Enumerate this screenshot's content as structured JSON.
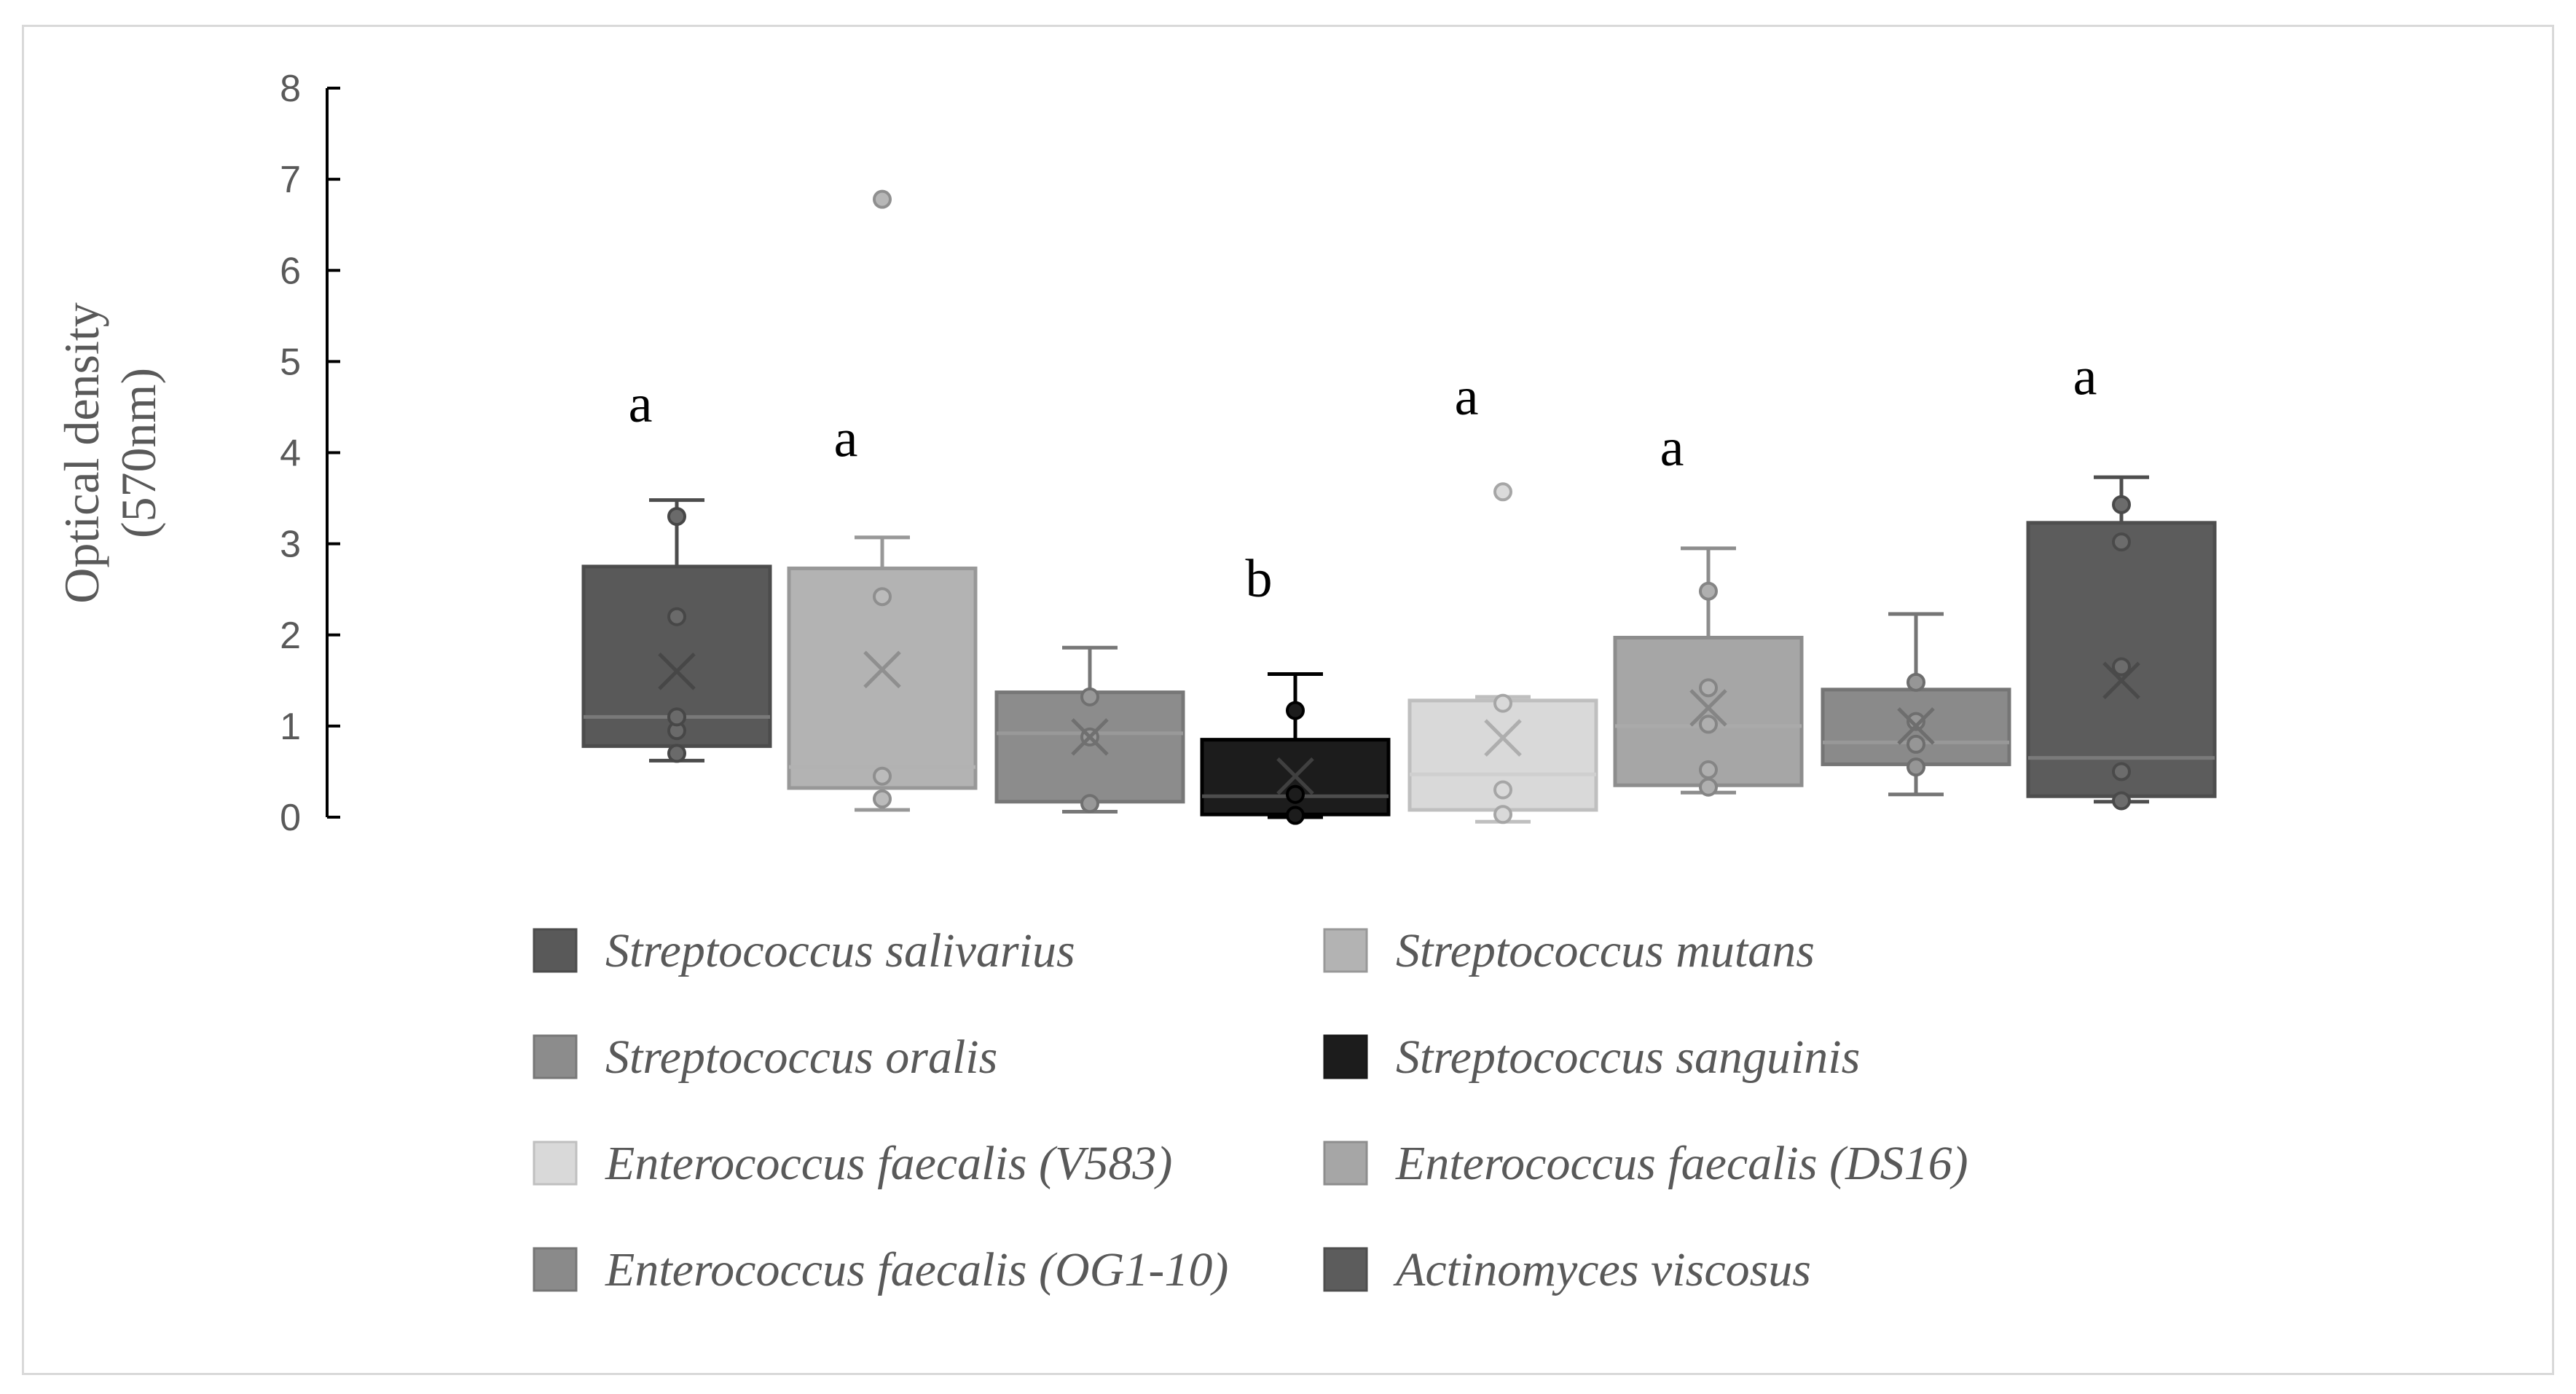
{
  "chart_data": {
    "type": "box",
    "title": "",
    "xlabel": "",
    "ylabel": [
      "Optical density",
      "(570nm)"
    ],
    "ylim": [
      0,
      8
    ],
    "yticks": [
      "0",
      "1",
      "2",
      "3",
      "4",
      "5",
      "6",
      "7",
      "8"
    ],
    "series": [
      {
        "name": "Streptococcus salivarius",
        "color": "#595959",
        "whisker_low": 0.62,
        "q1": 0.78,
        "median": 1.1,
        "q3": 2.75,
        "whisker_high": 3.48,
        "mean": 1.6,
        "points": [
          0.7,
          0.95,
          1.1,
          2.2,
          3.3
        ],
        "outliers": [],
        "letter": "a",
        "letter_y": 4.5
      },
      {
        "name": "Streptococcus mutans",
        "color": "#b3b3b3",
        "whisker_low": 0.08,
        "q1": 0.32,
        "median": 0.55,
        "q3": 2.73,
        "whisker_high": 3.07,
        "mean": 1.62,
        "points": [
          0.2,
          0.45,
          2.42
        ],
        "outliers": [
          6.78
        ],
        "letter": "a",
        "letter_y": 4.12
      },
      {
        "name": "Streptococcus oralis",
        "color": "#8c8c8c",
        "whisker_low": 0.06,
        "q1": 0.17,
        "median": 0.92,
        "q3": 1.37,
        "whisker_high": 1.86,
        "mean": 0.88,
        "points": [
          0.15,
          0.88,
          1.32
        ],
        "outliers": [],
        "letter": "",
        "letter_y": 0
      },
      {
        "name": "Streptococcus sanguinis",
        "color": "#1c1c1c",
        "whisker_low": 0.0,
        "q1": 0.03,
        "median": 0.23,
        "q3": 0.85,
        "whisker_high": 1.57,
        "mean": 0.45,
        "points": [
          0.02,
          0.25,
          1.17
        ],
        "outliers": [],
        "letter": "b",
        "letter_y": 2.58
      },
      {
        "name": "Enterococcus faecalis (V583)",
        "color": "#d9d9d9",
        "whisker_low": -0.05,
        "q1": 0.08,
        "median": 0.47,
        "q3": 1.28,
        "whisker_high": 1.32,
        "mean": 0.87,
        "points": [
          0.03,
          0.3,
          1.25
        ],
        "outliers": [
          3.57
        ],
        "letter": "a",
        "letter_y": 4.58
      },
      {
        "name": "Enterococcus faecalis (DS16)",
        "color": "#a6a6a6",
        "whisker_low": 0.27,
        "q1": 0.35,
        "median": 1.0,
        "q3": 1.97,
        "whisker_high": 2.95,
        "mean": 1.2,
        "points": [
          0.33,
          0.52,
          1.02,
          1.42,
          2.48
        ],
        "outliers": [],
        "letter": "a",
        "letter_y": 4.02
      },
      {
        "name": "Enterococcus faecalis (OG1-10)",
        "color": "#8a8a8a",
        "whisker_low": 0.25,
        "q1": 0.58,
        "median": 0.82,
        "q3": 1.4,
        "whisker_high": 2.23,
        "mean": 1.0,
        "points": [
          0.55,
          0.8,
          1.05,
          1.48
        ],
        "outliers": [],
        "letter": "",
        "letter_y": 0
      },
      {
        "name": "Actinomyces viscosus",
        "color": "#5c5c5c",
        "whisker_low": 0.17,
        "q1": 0.23,
        "median": 0.65,
        "q3": 3.23,
        "whisker_high": 3.73,
        "mean": 1.5,
        "points": [
          0.18,
          0.5,
          1.65,
          3.02,
          3.43
        ],
        "outliers": [],
        "letter": "a",
        "letter_y": 4.8
      }
    ]
  },
  "legend": {
    "items": [
      "Streptococcus salivarius",
      "Streptococcus mutans",
      "Streptococcus oralis",
      "Streptococcus sanguinis",
      "Enterococcus faecalis (V583)",
      "Enterococcus faecalis (DS16)",
      "Enterococcus faecalis (OG1-10)",
      "Actinomyces viscosus"
    ]
  }
}
